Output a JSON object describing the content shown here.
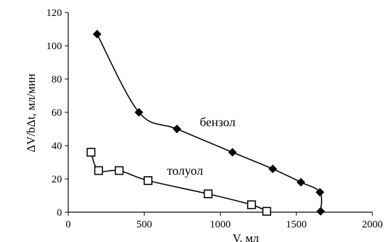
{
  "chart_data": {
    "type": "scatter",
    "title": "",
    "xlabel": "V, мл",
    "ylabel": "ΔV/bΔt, мл/мин",
    "xlim": [
      0,
      2000
    ],
    "ylim": [
      0,
      120
    ],
    "xticks": [
      0,
      500,
      1000,
      1500,
      2000
    ],
    "yticks": [
      0,
      20,
      40,
      60,
      80,
      100,
      120
    ],
    "grid": false,
    "legend": "none",
    "series": [
      {
        "name": "бензол",
        "marker": "filled-diamond",
        "color": "#000000",
        "x": [
          190,
          465,
          715,
          1080,
          1345,
          1530,
          1655,
          1660
        ],
        "y": [
          107,
          60,
          50,
          36,
          26,
          18,
          12,
          0.5
        ]
      },
      {
        "name": "толуол",
        "marker": "open-square",
        "color": "#000000",
        "x": [
          150,
          200,
          335,
          525,
          920,
          1205,
          1305
        ],
        "y": [
          36,
          25,
          25,
          19,
          11,
          4.5,
          0.5
        ]
      }
    ]
  }
}
